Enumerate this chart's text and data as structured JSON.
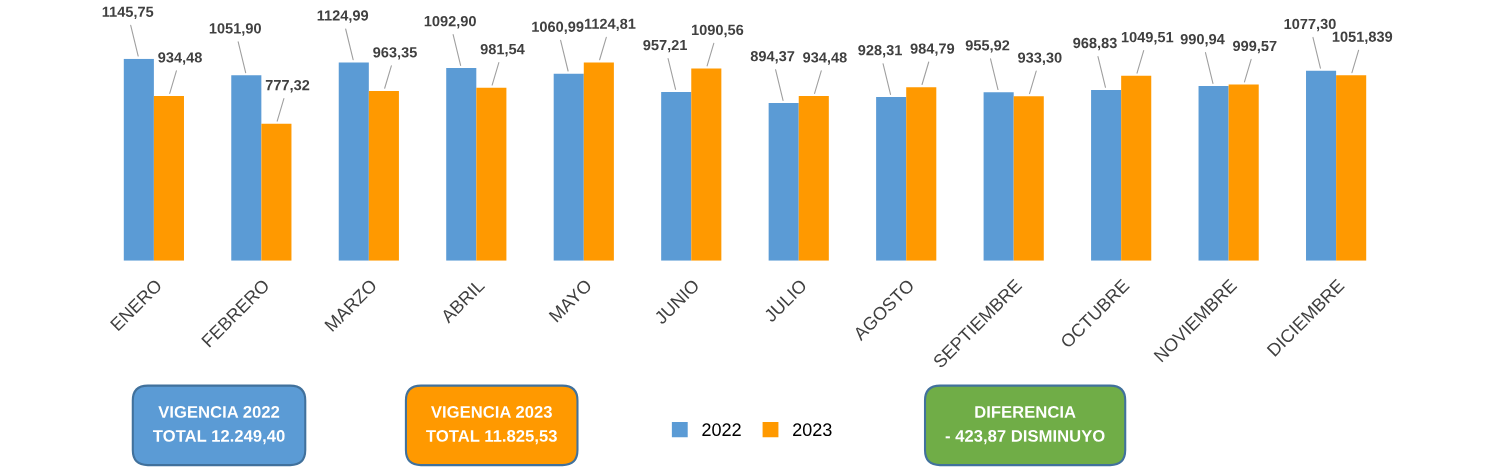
{
  "chart_data": {
    "type": "bar",
    "categories": [
      "ENERO",
      "FEBRERO",
      "MARZO",
      "ABRIL",
      "MAYO",
      "JUNIO",
      "JULIO",
      "AGOSTO",
      "SEPTIEMBRE",
      "OCTUBRE",
      "NOVIEMBRE",
      "DICIEMBRE"
    ],
    "series": [
      {
        "name": "2022",
        "color": "#5b9bd5",
        "values": [
          1145.75,
          1051.9,
          1124.99,
          1092.9,
          1060.99,
          957.21,
          894.37,
          928.31,
          955.92,
          968.83,
          990.94,
          1077.3
        ],
        "value_labels": [
          "1145,75",
          "1051,90",
          "1124,99",
          "1092,90",
          "1060,99",
          "957,21",
          "894,37",
          "928,31",
          "955,92",
          "968,83",
          "990,94",
          "1077,30"
        ]
      },
      {
        "name": "2023",
        "color": "#ff9900",
        "values": [
          934.48,
          777.32,
          963.35,
          981.54,
          1124.81,
          1090.56,
          934.48,
          984.79,
          933.3,
          1049.51,
          999.57,
          1051.839
        ],
        "value_labels": [
          "934,48",
          "777,32",
          "963,35",
          "981,54",
          "1124,81",
          "1090,56",
          "934,48",
          "984,79",
          "933,30",
          "1049,51",
          "999,57",
          "1051,839"
        ]
      }
    ],
    "annotations": [
      "VIGENCIA 2022\nTOTAL 12.249,40",
      "VIGENCIA 2023\nTOTAL 11.825,53",
      "DIFERENCIA\n- 423,87 DISMINUYO"
    ],
    "legend": "bottom",
    "grid": false
  }
}
